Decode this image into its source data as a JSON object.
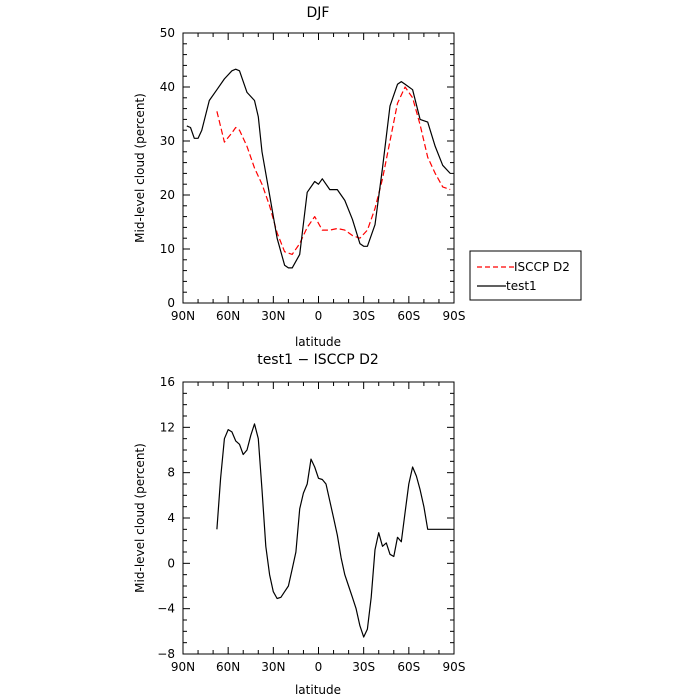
{
  "chart_data": [
    {
      "type": "line",
      "title": "DJF",
      "xlabel": "latitude",
      "ylabel": "Mid-level cloud (percent)",
      "xlim": [
        -90,
        90
      ],
      "ylim": [
        0,
        50
      ],
      "x_ticks": [
        -90,
        -60,
        -30,
        0,
        30,
        60,
        90
      ],
      "x_tick_labels": [
        "90N",
        "60N",
        "30N",
        "0",
        "30S",
        "60S",
        "90S"
      ],
      "y_ticks": [
        0,
        10,
        20,
        30,
        40,
        50
      ],
      "y_tick_labels": [
        "0",
        "10",
        "20",
        "30",
        "40",
        "50"
      ],
      "legend": {
        "placement": "right-outside"
      },
      "series": [
        {
          "name": "ISCCP D2",
          "color": "#ff0000",
          "style": "dashed",
          "x": [
            -67.5,
            -62.5,
            -57.5,
            -55,
            -52.5,
            -47.5,
            -42.5,
            -37.5,
            -32.5,
            -27.5,
            -22.5,
            -17.5,
            -12.5,
            -7.5,
            -2.5,
            2.5,
            7.5,
            12.5,
            17.5,
            22.5,
            27.5,
            32.5,
            37.5,
            42.5,
            47.5,
            52.5,
            57.5,
            62.5,
            67.5,
            72.5,
            77.5,
            82.5,
            87.5
          ],
          "y": [
            35.5,
            29.8,
            31.5,
            32.5,
            32.0,
            29.0,
            25.0,
            22.0,
            18.0,
            13.0,
            9.5,
            9.0,
            11.0,
            14.0,
            16.0,
            13.5,
            13.5,
            13.8,
            13.5,
            12.5,
            12.0,
            13.5,
            17.5,
            23.0,
            30.0,
            37.0,
            40.0,
            38.0,
            33.0,
            27.0,
            24.0,
            21.5,
            21.0
          ]
        },
        {
          "name": "test1",
          "color": "#000000",
          "style": "solid",
          "x": [
            -87.5,
            -85,
            -82.5,
            -80,
            -77.5,
            -72.5,
            -67.5,
            -62.5,
            -57.5,
            -55,
            -52.5,
            -47.5,
            -42.5,
            -40,
            -37.5,
            -32.5,
            -27.5,
            -22.5,
            -20,
            -17.5,
            -12.5,
            -7.5,
            -2.5,
            0,
            2.5,
            7.5,
            12.5,
            17.5,
            22.5,
            27.5,
            30,
            32.5,
            37.5,
            42.5,
            47.5,
            52.5,
            55,
            57.5,
            62.5,
            67.5,
            72.5,
            77.5,
            82.5,
            87.5
          ],
          "y": [
            32.8,
            32.5,
            30.5,
            30.5,
            32.0,
            37.5,
            39.5,
            41.5,
            43.0,
            43.3,
            43.0,
            39.0,
            37.5,
            34.5,
            28.0,
            20.0,
            12.0,
            7.0,
            6.5,
            6.5,
            9.0,
            20.5,
            22.5,
            22.0,
            23.0,
            21.0,
            21.0,
            19.0,
            15.5,
            11.0,
            10.5,
            10.5,
            14.5,
            25.0,
            36.5,
            40.5,
            41.0,
            40.5,
            39.5,
            34.0,
            33.5,
            29.0,
            25.5,
            24.0
          ]
        }
      ]
    },
    {
      "type": "line",
      "title": "test1 − ISCCP D2",
      "xlabel": "latitude",
      "ylabel": "Mid-level cloud (percent)",
      "xlim": [
        -90,
        90
      ],
      "ylim": [
        -8,
        16
      ],
      "x_ticks": [
        -90,
        -60,
        -30,
        0,
        30,
        60,
        90
      ],
      "x_tick_labels": [
        "90N",
        "60N",
        "30N",
        "0",
        "30S",
        "60S",
        "90S"
      ],
      "y_ticks": [
        -8,
        -4,
        0,
        4,
        8,
        12,
        16
      ],
      "y_tick_labels": [
        "−8",
        "−4",
        "0",
        "4",
        "8",
        "12",
        "16"
      ],
      "series": [
        {
          "name": "",
          "color": "#000000",
          "style": "solid",
          "x": [
            -67.5,
            -65,
            -62.5,
            -60,
            -57.5,
            -55,
            -52.5,
            -50,
            -47.5,
            -45,
            -42.5,
            -40,
            -37.5,
            -35,
            -32.5,
            -30,
            -27.5,
            -25,
            -22.5,
            -20,
            -17.5,
            -15,
            -12.5,
            -10,
            -7.5,
            -5,
            -2.5,
            0,
            2.5,
            5,
            7.5,
            10,
            12.5,
            15,
            17.5,
            20,
            22.5,
            25,
            27.5,
            30,
            32.5,
            35,
            37.5,
            40,
            42.5,
            45,
            47.5,
            50,
            52.5,
            55,
            57.5,
            60,
            62.5,
            65,
            67.5,
            70,
            72.5,
            75,
            77.5,
            80,
            82.5,
            85,
            87.5
          ],
          "y": [
            3.0,
            7.5,
            11.0,
            11.8,
            11.6,
            10.8,
            10.5,
            9.6,
            10.0,
            11.3,
            12.3,
            11.0,
            6.5,
            1.5,
            -1.0,
            -2.5,
            -3.1,
            -3.0,
            -2.5,
            -2.0,
            -0.5,
            1.0,
            4.8,
            6.2,
            7.0,
            9.2,
            8.5,
            7.5,
            7.4,
            7.0,
            5.5,
            4.0,
            2.5,
            0.5,
            -1.0,
            -2.0,
            -3.0,
            -4.0,
            -5.5,
            -6.5,
            -5.8,
            -3.0,
            1.2,
            2.7,
            1.5,
            1.8,
            0.8,
            0.6,
            2.3,
            1.9,
            4.5,
            7.0,
            8.5,
            7.7,
            6.5,
            5.0,
            3.0,
            3.0,
            3.0,
            3.0,
            3.0,
            3.0,
            3.0
          ]
        }
      ]
    }
  ]
}
